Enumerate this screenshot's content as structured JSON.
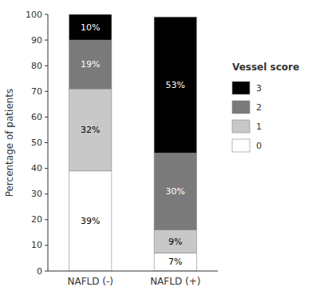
{
  "chart_data": {
    "type": "bar",
    "stacked": true,
    "data_labels": true,
    "grid": false,
    "legend": "right",
    "categories": [
      "NAFLD (-)",
      "NAFLD (+)"
    ],
    "y_label": "Percentage of patients",
    "legend_title": "Vessel score",
    "ylim": [
      0,
      100
    ],
    "yticks": [
      0,
      10,
      20,
      30,
      40,
      50,
      60,
      70,
      80,
      90,
      100
    ],
    "series": [
      {
        "name": "0",
        "color": "#ffffff",
        "values": [
          39,
          7
        ],
        "value_labels": [
          "39%",
          "7%"
        ]
      },
      {
        "name": "1",
        "color": "#c8c8c8",
        "values": [
          32,
          9
        ],
        "value_labels": [
          "32%",
          "9%"
        ]
      },
      {
        "name": "2",
        "color": "#7a7a7a",
        "values": [
          19,
          30
        ],
        "value_labels": [
          "19%",
          "30%"
        ]
      },
      {
        "name": "3",
        "color": "#000000",
        "values": [
          10,
          53
        ],
        "value_labels": [
          "10%",
          "53%"
        ]
      }
    ]
  }
}
